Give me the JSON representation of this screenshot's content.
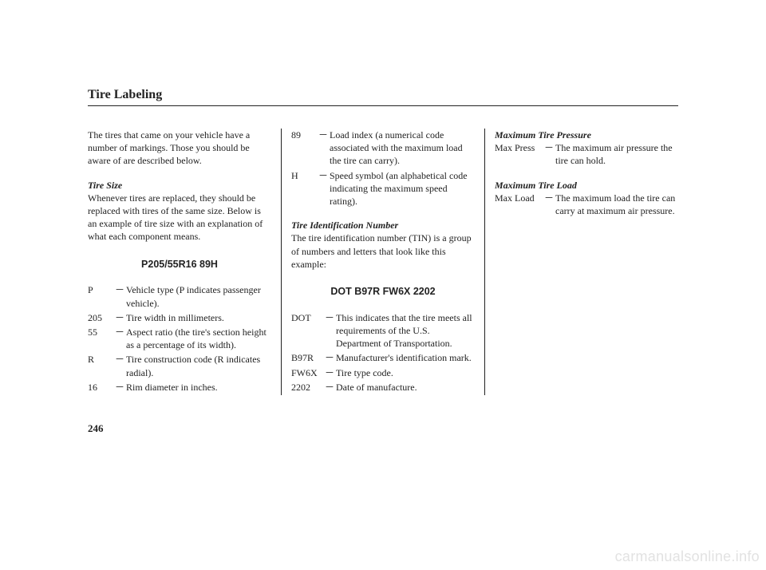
{
  "page": {
    "title": "Tire Labeling",
    "number": "246"
  },
  "watermark": "carmanualsonline.info",
  "col1": {
    "intro": "The tires that came on your vehicle have a number of markings. Those you should be aware of are described below.",
    "tireSizeHead": "Tire Size",
    "tireSizeBody": "Whenever tires are replaced, they should be replaced with tires of the same size. Below is an example of tire size with an explanation of what each component means.",
    "example": "P205/55R16 89H",
    "defs": [
      {
        "k": "P",
        "v": "Vehicle type (P indicates passenger vehicle)."
      },
      {
        "k": "205",
        "v": "Tire width in millimeters."
      },
      {
        "k": "55",
        "v": "Aspect ratio (the tire's section height as a percentage of its width)."
      },
      {
        "k": "R",
        "v": "Tire construction code (R indicates radial)."
      },
      {
        "k": "16",
        "v": "Rim diameter in inches."
      }
    ]
  },
  "col2": {
    "topDefs": [
      {
        "k": "89",
        "v": "Load index (a numerical code associated with the maximum load the tire can carry)."
      },
      {
        "k": "H",
        "v": "Speed symbol (an alphabetical code indicating the maximum speed rating)."
      }
    ],
    "tinHead": "Tire Identification Number",
    "tinBody": "The tire identification number (TIN) is a group of numbers and letters that look like this example:",
    "example": "DOT B97R FW6X 2202",
    "defs": [
      {
        "k": "DOT",
        "v": "This indicates that the tire meets all requirements of the U.S. Department of Transportation."
      },
      {
        "k": "B97R",
        "v": "Manufacturer's identification mark."
      },
      {
        "k": "FW6X",
        "v": "Tire type code."
      },
      {
        "k": "2202",
        "v": "Date of manufacture."
      }
    ]
  },
  "col3": {
    "maxPressHead": "Maximum Tire Pressure",
    "maxPress": {
      "k": "Max Press",
      "v": "The maximum air pressure the tire can hold."
    },
    "maxLoadHead": "Maximum Tire Load",
    "maxLoad": {
      "k": "Max Load",
      "v": "The maximum load the tire can carry at maximum air pressure."
    }
  }
}
